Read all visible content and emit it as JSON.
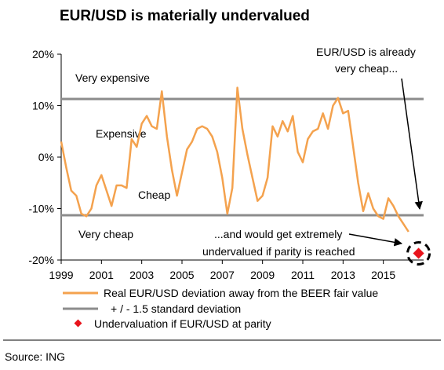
{
  "chart_data": {
    "type": "line",
    "title": "EUR/USD is materially undervalued",
    "xlabel": "",
    "ylabel": "",
    "xlim": [
      1999,
      2017
    ],
    "ylim": [
      -20,
      20
    ],
    "x_ticks": [
      "1999",
      "2001",
      "2003",
      "2005",
      "2007",
      "2009",
      "2011",
      "2013",
      "2015"
    ],
    "y_ticks": [
      {
        "value": 20,
        "label": "20%"
      },
      {
        "value": 10,
        "label": "10%"
      },
      {
        "value": 0,
        "label": "0%"
      },
      {
        "value": -10,
        "label": "-10%"
      },
      {
        "value": -20,
        "label": "-20%"
      }
    ],
    "grid": false,
    "legend_position": "bottom",
    "series": [
      {
        "name": "Real EUR/USD deviation away from the BEER fair value",
        "color": "#f4a24e",
        "x": [
          1999.0,
          1999.25,
          1999.5,
          1999.75,
          2000.0,
          2000.25,
          2000.5,
          2000.75,
          2001.0,
          2001.25,
          2001.5,
          2001.75,
          2002.0,
          2002.25,
          2002.5,
          2002.75,
          2003.0,
          2003.25,
          2003.5,
          2003.75,
          2004.0,
          2004.25,
          2004.5,
          2004.75,
          2005.0,
          2005.25,
          2005.5,
          2005.75,
          2006.0,
          2006.25,
          2006.5,
          2006.75,
          2007.0,
          2007.25,
          2007.5,
          2007.75,
          2008.0,
          2008.25,
          2008.5,
          2008.75,
          2009.0,
          2009.25,
          2009.5,
          2009.75,
          2010.0,
          2010.25,
          2010.5,
          2010.75,
          2011.0,
          2011.25,
          2011.5,
          2011.75,
          2012.0,
          2012.25,
          2012.5,
          2012.75,
          2013.0,
          2013.25,
          2013.5,
          2013.75,
          2014.0,
          2014.25,
          2014.5,
          2014.75,
          2015.0,
          2015.25,
          2015.5,
          2015.75,
          2016.0,
          2016.25
        ],
        "values": [
          3.0,
          -2.0,
          -6.5,
          -7.5,
          -11.0,
          -11.5,
          -10.0,
          -5.5,
          -3.5,
          -6.5,
          -9.5,
          -5.5,
          -5.5,
          -6.0,
          3.5,
          2.0,
          6.5,
          8.0,
          6.0,
          5.5,
          12.8,
          4.0,
          -2.5,
          -7.5,
          -3.0,
          1.5,
          3.0,
          5.5,
          6.0,
          5.5,
          4.0,
          1.0,
          -4.0,
          -11.0,
          -6.0,
          13.5,
          5.5,
          0.5,
          -4.0,
          -8.5,
          -7.5,
          -4.0,
          6.0,
          4.0,
          7.0,
          5.0,
          8.0,
          1.0,
          -1.0,
          3.5,
          5.0,
          5.5,
          8.5,
          5.5,
          10.0,
          11.5,
          8.5,
          9.0,
          2.0,
          -5.0,
          -10.5,
          -7.0,
          -10.0,
          -11.5,
          -12.0,
          -8.0,
          -9.5,
          -11.5,
          -13.0,
          -14.5
        ]
      },
      {
        "name": "+ / - 1.5 standard deviation",
        "color": "#8c8c8c",
        "upper": 11.3,
        "lower": -11.3
      },
      {
        "name": "Undervaluation if EUR/USD at parity",
        "color": "#e8141c",
        "x": [
          2016.75
        ],
        "values": [
          -18.7
        ]
      }
    ],
    "zone_labels": [
      "Very expensive",
      "Expensive",
      "Cheap",
      "Very cheap"
    ],
    "annotations": {
      "top_right": [
        "EUR/USD is already",
        "very cheap..."
      ],
      "bottom_right": [
        "...and would get extremely",
        "undervalued if parity is reached"
      ]
    },
    "source": "Source: ING"
  }
}
